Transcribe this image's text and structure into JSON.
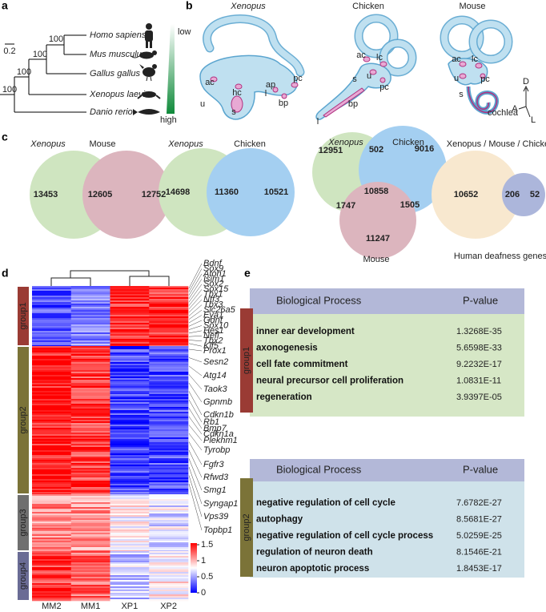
{
  "panels": {
    "a": {
      "label": "a",
      "species": [
        "Homo  sapiens",
        "Mus  musculus",
        "Gallus gallus",
        "Xenopus laevis",
        "Danio  rerio"
      ],
      "bootstrap": [
        100,
        100,
        100,
        100
      ],
      "scale": "0.2",
      "gradient": {
        "top": "low",
        "bottom": "high"
      }
    },
    "b": {
      "label": "b",
      "ears": [
        {
          "title": "Xenopus",
          "parts": [
            "ac",
            "hc",
            "u",
            "s",
            "ap",
            "l",
            "bp",
            "pc"
          ]
        },
        {
          "title": "Chicken",
          "parts": [
            "ac",
            "lc",
            "s",
            "u",
            "pc",
            "bp",
            "l"
          ]
        },
        {
          "title": "Mouse",
          "parts": [
            "ac",
            "lc",
            "u",
            "pc",
            "s",
            "cochlea"
          ]
        }
      ],
      "axes": [
        "D",
        "A",
        "L"
      ]
    },
    "c": {
      "label": "c",
      "venns": [
        {
          "sets": [
            "Xenopus",
            "Mouse"
          ],
          "counts": [
            13453,
            12605,
            12752
          ]
        },
        {
          "sets": [
            "Xenopus",
            "Chicken"
          ],
          "counts": [
            14698,
            11360,
            10521
          ]
        },
        {
          "sets": [
            "Xenopus",
            "Chicken",
            "Mouse"
          ],
          "counts": [
            12951,
            502,
            9016,
            10858,
            1747,
            1505,
            11247
          ]
        },
        {
          "sets": [
            "Xenopus / Mouse / Chicken",
            "Human deafness genes"
          ],
          "counts": [
            10652,
            206,
            52
          ]
        }
      ]
    },
    "d": {
      "label": "d",
      "groups": [
        "group1",
        "group2",
        "group3",
        "group4"
      ],
      "columns": [
        "MM2",
        "MM1",
        "XP1",
        "XP2"
      ],
      "colorbar_ticks": [
        1.5,
        1,
        0.5,
        0
      ],
      "genes_group1": [
        {
          "name": "Bdnf",
          "color": "#e0201c"
        },
        {
          "name": "Sox9",
          "color": "#222222"
        },
        {
          "name": "Atoh1",
          "color": "#e0201c"
        },
        {
          "name": "Isim1",
          "color": "#e0201c"
        },
        {
          "name": "Sox2",
          "color": "#e0201c"
        },
        {
          "name": "Sox15",
          "color": "#e0201c"
        },
        {
          "name": "Tbx1",
          "color": "#222222"
        },
        {
          "name": "Ntf3",
          "color": "#e0201c"
        },
        {
          "name": "Tbx3",
          "color": "#222222"
        },
        {
          "name": "Slc26a5",
          "color": "#e0201c"
        },
        {
          "name": "Eya1",
          "color": "#e0201c"
        },
        {
          "name": "Gdnf",
          "color": "#222222"
        },
        {
          "name": "Sox10",
          "color": "#222222"
        },
        {
          "name": "Hes1",
          "color": "#222222"
        },
        {
          "name": "Nefl",
          "color": "#222222"
        },
        {
          "name": "Tbx2",
          "color": "#e0201c"
        },
        {
          "name": "Klf5",
          "color": "#222222"
        }
      ],
      "genes_group2": [
        "Prox1",
        "Sesn2",
        "Atg14",
        "Taok3",
        "Gpnmb",
        "Cdkn1b",
        "Rb1",
        "Bmp7",
        "Cdkn1a",
        "Plekhm1",
        "Tyrobp",
        "Fgfr3",
        "Rfwd3",
        "Smg1",
        "Syngap1",
        "Vps39",
        "Topbp1"
      ]
    },
    "e": {
      "label": "e",
      "tables": [
        {
          "group": "group1",
          "header": [
            "Biological Process",
            "P-value"
          ],
          "rows": [
            [
              "inner ear development",
              "1.3268E-35"
            ],
            [
              "axonogenesis",
              "5.6598E-33"
            ],
            [
              "cell fate commitment",
              "9.2232E-17"
            ],
            [
              "neural precursor cell proliferation",
              "1.0831E-11"
            ],
            [
              "regeneration",
              "3.9397E-05"
            ]
          ]
        },
        {
          "group": "group2",
          "header": [
            "Biological Process",
            "P-value"
          ],
          "rows": [
            [
              "negative regulation of cell cycle",
              "7.6782E-27"
            ],
            [
              "autophagy",
              "8.5681E-27"
            ],
            [
              "negative regulation of cell cycle process",
              "5.0259E-25"
            ],
            [
              "regulation of neuron death",
              "8.1546E-21"
            ],
            [
              "neuron apoptotic process",
              "1.8453E-17"
            ]
          ]
        }
      ]
    }
  }
}
